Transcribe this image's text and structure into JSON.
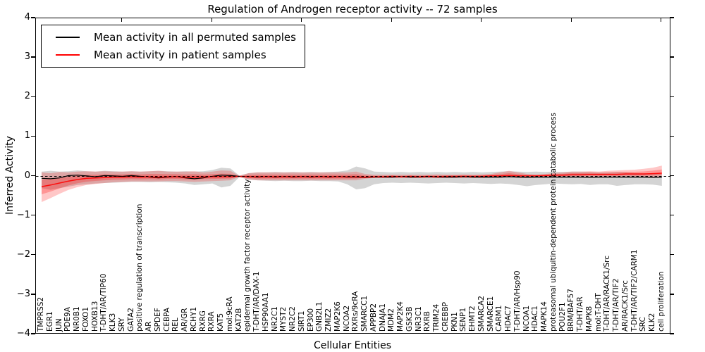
{
  "chart_data": {
    "type": "line",
    "title": "Regulation of Androgen receptor activity -- 72 samples",
    "xlabel": "Cellular Entities",
    "ylabel": "Inferred Activity",
    "ylim": [
      -4,
      4
    ],
    "yticks": [
      4,
      3,
      2,
      1,
      0,
      -1,
      -2,
      -3,
      -4
    ],
    "ytick_labels": [
      "4",
      "3",
      "2",
      "1",
      "0",
      "−1",
      "−2",
      "−3",
      "−4"
    ],
    "grid": false,
    "legend_position": "upper left",
    "reference_line": {
      "y": 0,
      "style": "dashed",
      "color": "#000000"
    },
    "categories": [
      "TMPRSS2",
      "EGR1",
      "JUN",
      "PDE9A",
      "NR0B1",
      "FOXO1",
      "HOXB13",
      "T-DHT/AR/TIP60",
      "KLK3",
      "SRY",
      "GATA2",
      "positive regulation of transcription",
      "AR",
      "SPDEF",
      "CEBPA",
      "REL",
      "AR/GR",
      "RCHY1",
      "RXRG",
      "RXRA",
      "KAT5",
      "mol:9cRA",
      "KAT2B",
      "epidermal growth factor receptor activity",
      "T-DHT/AR/DAX-1",
      "HSP90AA1",
      "NR2C1",
      "MYST2",
      "NR2C2",
      "SIRT1",
      "EP300",
      "GNB2L1",
      "ZMIZ2",
      "MAP2K6",
      "NCOA2",
      "RXRs/9cRA",
      "SMARCC1",
      "APPBP2",
      "DNAJA1",
      "MDM2",
      "MAP2K4",
      "GSK3B",
      "NR3C1",
      "RXRB",
      "TRIM24",
      "CREBBP",
      "PKN1",
      "SENP1",
      "EHMT2",
      "SMARCA2",
      "SMARCE1",
      "CARM1",
      "HDAC7",
      "T-DHT/AR/Hsp90",
      "NCOA1",
      "HDAC1",
      "MAPK14",
      "proteasomal ubiquitin-dependent protein catabolic process",
      "POU2F1",
      "BRM/BAF57",
      "T-DHT/AR",
      "MAPK8",
      "mol:T-DHT",
      "T-DHT/AR/RACK1/Src",
      "T-DHT/AR/TIF2",
      "AR/RACK1/Src",
      "T-DHT/AR/TIF2/CARM1",
      "SRC",
      "KLK2",
      "cell proliferation"
    ],
    "series": [
      {
        "name": "Mean activity in all permuted samples",
        "color": "#000000",
        "band_color": "#787878",
        "values": [
          -0.05,
          -0.06,
          -0.04,
          0.02,
          0.03,
          0.01,
          -0.01,
          0.02,
          0.01,
          0.0,
          0.02,
          0.0,
          -0.02,
          -0.04,
          -0.02,
          -0.01,
          -0.04,
          -0.06,
          -0.04,
          0.0,
          0.03,
          0.02,
          0.0,
          -0.01,
          -0.02,
          -0.01,
          -0.02,
          -0.01,
          -0.02,
          -0.01,
          -0.02,
          -0.01,
          -0.02,
          -0.01,
          -0.02,
          -0.02,
          -0.03,
          -0.02,
          -0.02,
          -0.02,
          -0.01,
          -0.02,
          -0.02,
          -0.01,
          -0.02,
          -0.02,
          -0.02,
          -0.01,
          -0.02,
          -0.02,
          -0.02,
          -0.02,
          -0.01,
          -0.02,
          -0.03,
          -0.02,
          -0.02,
          -0.02,
          -0.02,
          -0.02,
          -0.02,
          -0.03,
          -0.02,
          -0.02,
          -0.02,
          -0.02,
          -0.02,
          -0.02,
          -0.03,
          -0.02
        ],
        "band_lower": [
          -0.3,
          -0.34,
          -0.3,
          -0.26,
          -0.22,
          -0.2,
          -0.18,
          -0.17,
          -0.16,
          -0.15,
          -0.14,
          -0.14,
          -0.15,
          -0.14,
          -0.15,
          -0.16,
          -0.18,
          -0.22,
          -0.2,
          -0.18,
          -0.28,
          -0.24,
          -0.02,
          -0.08,
          -0.1,
          -0.11,
          -0.12,
          -0.11,
          -0.12,
          -0.12,
          -0.11,
          -0.12,
          -0.12,
          -0.13,
          -0.2,
          -0.33,
          -0.3,
          -0.2,
          -0.17,
          -0.16,
          -0.17,
          -0.16,
          -0.17,
          -0.18,
          -0.17,
          -0.16,
          -0.17,
          -0.18,
          -0.17,
          -0.18,
          -0.19,
          -0.18,
          -0.19,
          -0.22,
          -0.25,
          -0.22,
          -0.2,
          -0.18,
          -0.19,
          -0.2,
          -0.19,
          -0.22,
          -0.2,
          -0.2,
          -0.24,
          -0.22,
          -0.2,
          -0.2,
          -0.21,
          -0.24
        ],
        "band_upper": [
          0.12,
          0.14,
          0.12,
          0.13,
          0.15,
          0.13,
          0.12,
          0.14,
          0.13,
          0.12,
          0.13,
          0.12,
          0.13,
          0.14,
          0.13,
          0.12,
          0.13,
          0.12,
          0.13,
          0.16,
          0.22,
          0.2,
          0.02,
          0.08,
          0.1,
          0.1,
          0.11,
          0.1,
          0.11,
          0.1,
          0.11,
          0.1,
          0.11,
          0.12,
          0.15,
          0.25,
          0.2,
          0.12,
          0.11,
          0.1,
          0.11,
          0.1,
          0.11,
          0.1,
          0.11,
          0.1,
          0.11,
          0.1,
          0.11,
          0.1,
          0.11,
          0.12,
          0.13,
          0.12,
          0.11,
          0.12,
          0.11,
          0.12,
          0.11,
          0.12,
          0.12,
          0.11,
          0.1,
          0.1,
          0.11,
          0.1,
          0.08,
          0.08,
          0.07,
          0.06
        ]
      },
      {
        "name": "Mean activity in patient samples",
        "color": "#ff0000",
        "band_color": "#ff0000",
        "values": [
          -0.26,
          -0.22,
          -0.17,
          -0.12,
          -0.08,
          -0.05,
          -0.04,
          -0.03,
          -0.02,
          -0.02,
          -0.01,
          -0.02,
          -0.01,
          -0.02,
          -0.01,
          -0.01,
          -0.02,
          -0.02,
          -0.01,
          -0.01,
          -0.01,
          -0.01,
          0.0,
          -0.01,
          -0.01,
          -0.01,
          -0.01,
          -0.01,
          -0.01,
          -0.01,
          -0.01,
          -0.01,
          -0.01,
          -0.01,
          -0.01,
          -0.01,
          -0.02,
          -0.01,
          -0.01,
          0.0,
          -0.01,
          0.0,
          -0.01,
          0.0,
          -0.01,
          0.0,
          0.0,
          0.0,
          0.0,
          0.0,
          0.01,
          0.01,
          0.02,
          0.01,
          0.01,
          0.01,
          0.02,
          0.03,
          0.03,
          0.04,
          0.04,
          0.05,
          0.05,
          0.05,
          0.05,
          0.06,
          0.06,
          0.06,
          0.07,
          0.08
        ],
        "band_lower": [
          -0.65,
          -0.55,
          -0.44,
          -0.34,
          -0.27,
          -0.22,
          -0.19,
          -0.17,
          -0.15,
          -0.14,
          -0.13,
          -0.13,
          -0.13,
          -0.13,
          -0.12,
          -0.12,
          -0.13,
          -0.14,
          -0.13,
          -0.12,
          -0.11,
          -0.1,
          -0.01,
          -0.08,
          -0.1,
          -0.1,
          -0.1,
          -0.1,
          -0.1,
          -0.1,
          -0.1,
          -0.1,
          -0.1,
          -0.1,
          -0.1,
          -0.1,
          -0.06,
          -0.04,
          -0.04,
          -0.04,
          -0.04,
          -0.04,
          -0.04,
          -0.04,
          -0.04,
          -0.04,
          -0.04,
          -0.04,
          -0.04,
          -0.04,
          -0.03,
          -0.03,
          -0.02,
          -0.03,
          -0.03,
          -0.03,
          -0.02,
          -0.02,
          -0.02,
          -0.01,
          -0.02,
          -0.01,
          -0.02,
          -0.01,
          -0.02,
          -0.01,
          -0.02,
          -0.02,
          -0.02,
          -0.02
        ],
        "band_upper": [
          0.1,
          0.08,
          0.11,
          0.1,
          0.12,
          0.13,
          0.12,
          0.13,
          0.12,
          0.12,
          0.13,
          0.12,
          0.13,
          0.14,
          0.12,
          0.12,
          0.12,
          0.13,
          0.1,
          0.12,
          0.15,
          0.14,
          0.01,
          0.08,
          0.1,
          0.1,
          0.1,
          0.1,
          0.1,
          0.1,
          0.1,
          0.1,
          0.1,
          0.1,
          0.1,
          0.12,
          0.06,
          0.04,
          0.04,
          0.04,
          0.04,
          0.04,
          0.04,
          0.04,
          0.05,
          0.04,
          0.04,
          0.05,
          0.04,
          0.05,
          0.06,
          0.1,
          0.14,
          0.1,
          0.06,
          0.05,
          0.06,
          0.08,
          0.1,
          0.12,
          0.12,
          0.13,
          0.12,
          0.14,
          0.15,
          0.16,
          0.17,
          0.19,
          0.22,
          0.27
        ]
      }
    ]
  }
}
